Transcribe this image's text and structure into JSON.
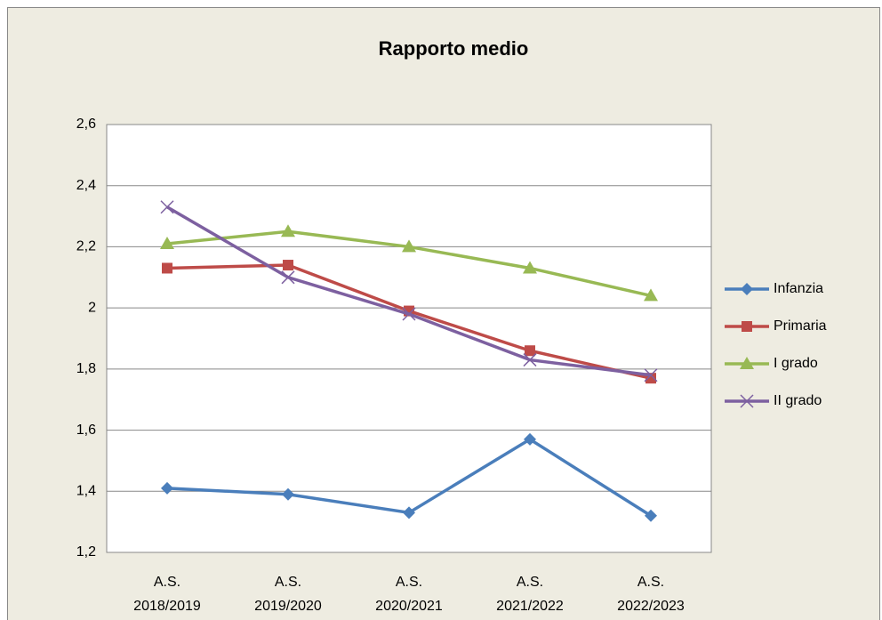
{
  "chart_data": {
    "type": "line",
    "title": "Rapporto medio",
    "categories": [
      "A.S. 2018/2019",
      "A.S. 2019/2020",
      "A.S. 2020/2021",
      "A.S. 2021/2022",
      "A.S. 2022/2023"
    ],
    "series": [
      {
        "name": "Infanzia",
        "color": "#4a7ebb",
        "marker": "diamond",
        "values": [
          1.41,
          1.39,
          1.33,
          1.57,
          1.32
        ]
      },
      {
        "name": "Primaria",
        "color": "#be4b48",
        "marker": "square",
        "values": [
          2.13,
          2.14,
          1.99,
          1.86,
          1.77
        ]
      },
      {
        "name": "I grado",
        "color": "#98b954",
        "marker": "triangle",
        "values": [
          2.21,
          2.25,
          2.2,
          2.13,
          2.04
        ]
      },
      {
        "name": "II grado",
        "color": "#7d60a0",
        "marker": "x",
        "values": [
          2.33,
          2.1,
          1.98,
          1.83,
          1.78
        ]
      }
    ],
    "ylim": [
      1.2,
      2.6
    ],
    "yticks": [
      {
        "value": 1.2,
        "label": "1,2"
      },
      {
        "value": 1.4,
        "label": "1,4"
      },
      {
        "value": 1.6,
        "label": "1,6"
      },
      {
        "value": 1.8,
        "label": "1,8"
      },
      2,
      {
        "value": 2.2,
        "label": "2,2"
      },
      {
        "value": 2.4,
        "label": "2,4"
      },
      {
        "value": 2.6,
        "label": "2,6"
      }
    ],
    "grid": true,
    "legend": "right"
  }
}
